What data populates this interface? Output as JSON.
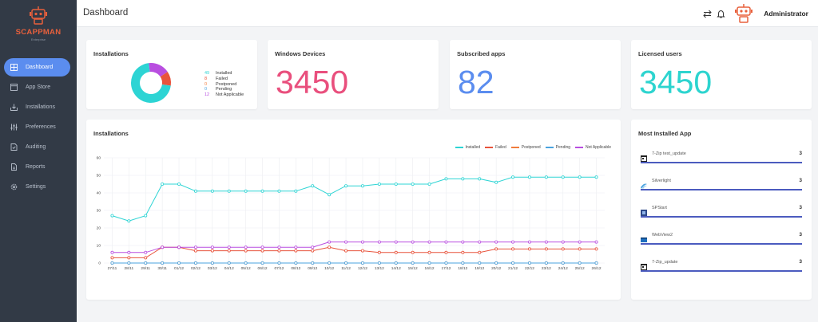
{
  "brand": {
    "name": "SCAPPMAN",
    "tagline": "Enterprise"
  },
  "sidebar": {
    "items": [
      {
        "label": "Dashboard",
        "icon": "grid-icon",
        "active": true
      },
      {
        "label": "App Store",
        "icon": "window-icon"
      },
      {
        "label": "Installations",
        "icon": "download-tray-icon"
      },
      {
        "label": "Preferences",
        "icon": "sliders-icon"
      },
      {
        "label": "Auditing",
        "icon": "document-check-icon"
      },
      {
        "label": "Reports",
        "icon": "file-icon"
      },
      {
        "label": "Settings",
        "icon": "gear-icon"
      }
    ]
  },
  "header": {
    "title": "Dashboard",
    "user": "Administrator"
  },
  "installations_summary": {
    "title": "Installations",
    "items": [
      {
        "value": "49",
        "label": "Installed",
        "color": "#2dd4d4"
      },
      {
        "value": "8",
        "label": "Failed",
        "color": "#e8533c"
      },
      {
        "value": "0",
        "label": "Postponed",
        "color": "#f07c3c"
      },
      {
        "value": "0",
        "label": "Pending",
        "color": "#4aa3df"
      },
      {
        "value": "12",
        "label": "Not Applicable",
        "color": "#b94ee0"
      }
    ]
  },
  "stats": {
    "windows_devices": {
      "label": "Windows Devices",
      "value": "3450",
      "color": "#e94f7d"
    },
    "subscribed_apps": {
      "label": "Subscribed apps",
      "value": "82",
      "color": "#5b8def"
    },
    "licensed_users": {
      "label": "Licensed users",
      "value": "3450",
      "color": "#2dd4cf"
    }
  },
  "installations_chart": {
    "title": "Installations"
  },
  "chart_data": {
    "type": "line",
    "title": "Installations",
    "x": [
      "27/11",
      "28/11",
      "29/11",
      "30/11",
      "01/12",
      "02/12",
      "03/12",
      "04/12",
      "05/12",
      "06/12",
      "07/12",
      "08/12",
      "09/12",
      "10/12",
      "11/12",
      "12/12",
      "13/12",
      "14/12",
      "15/12",
      "16/12",
      "17/12",
      "18/12",
      "19/12",
      "20/12",
      "21/12",
      "22/12",
      "23/12",
      "24/12",
      "25/12",
      "26/12"
    ],
    "ylim": [
      0,
      60
    ],
    "yticks": [
      0,
      10,
      20,
      30,
      40,
      50,
      60
    ],
    "grid": true,
    "legend": "top-right",
    "series": [
      {
        "name": "Installed",
        "color": "#2dd4d4",
        "values": [
          27,
          24,
          27,
          45,
          45,
          41,
          41,
          41,
          41,
          41,
          41,
          41,
          44,
          39,
          44,
          44,
          45,
          45,
          45,
          45,
          48,
          48,
          48,
          46,
          49,
          49,
          49,
          49,
          49,
          49
        ]
      },
      {
        "name": "Failed",
        "color": "#e8533c",
        "values": [
          3,
          3,
          3,
          9,
          9,
          7,
          7,
          7,
          7,
          7,
          7,
          7,
          7,
          9,
          7,
          7,
          6,
          6,
          6,
          6,
          6,
          6,
          6,
          8,
          8,
          8,
          8,
          8,
          8,
          8
        ]
      },
      {
        "name": "Postponed",
        "color": "#f07c3c",
        "values": [
          0,
          0,
          0,
          0,
          0,
          0,
          0,
          0,
          0,
          0,
          0,
          0,
          0,
          0,
          0,
          0,
          0,
          0,
          0,
          0,
          0,
          0,
          0,
          0,
          0,
          0,
          0,
          0,
          0,
          0
        ]
      },
      {
        "name": "Pending",
        "color": "#4aa3df",
        "values": [
          0,
          0,
          0,
          0,
          0,
          0,
          0,
          0,
          0,
          0,
          0,
          0,
          0,
          0,
          0,
          0,
          0,
          0,
          0,
          0,
          0,
          0,
          0,
          0,
          0,
          0,
          0,
          0,
          0,
          0
        ]
      },
      {
        "name": "Not Applicable",
        "color": "#b94ee0",
        "values": [
          6,
          6,
          6,
          9,
          9,
          9,
          9,
          9,
          9,
          9,
          9,
          9,
          9,
          12,
          12,
          12,
          12,
          12,
          12,
          12,
          12,
          12,
          12,
          12,
          12,
          12,
          12,
          12,
          12,
          12
        ]
      }
    ]
  },
  "most_installed": {
    "title": "Most Installed App",
    "items": [
      {
        "name": "7-Zip test_update",
        "count": "3",
        "icon": "app-box-icon"
      },
      {
        "name": "Silverlight",
        "count": "3",
        "icon": "silverlight-icon"
      },
      {
        "name": "SPStart",
        "count": "3",
        "icon": "app-logo-icon"
      },
      {
        "name": "WebView2",
        "count": "3",
        "icon": "webview-icon"
      },
      {
        "name": "7-Zip_update",
        "count": "3",
        "icon": "app-box-icon"
      }
    ]
  }
}
